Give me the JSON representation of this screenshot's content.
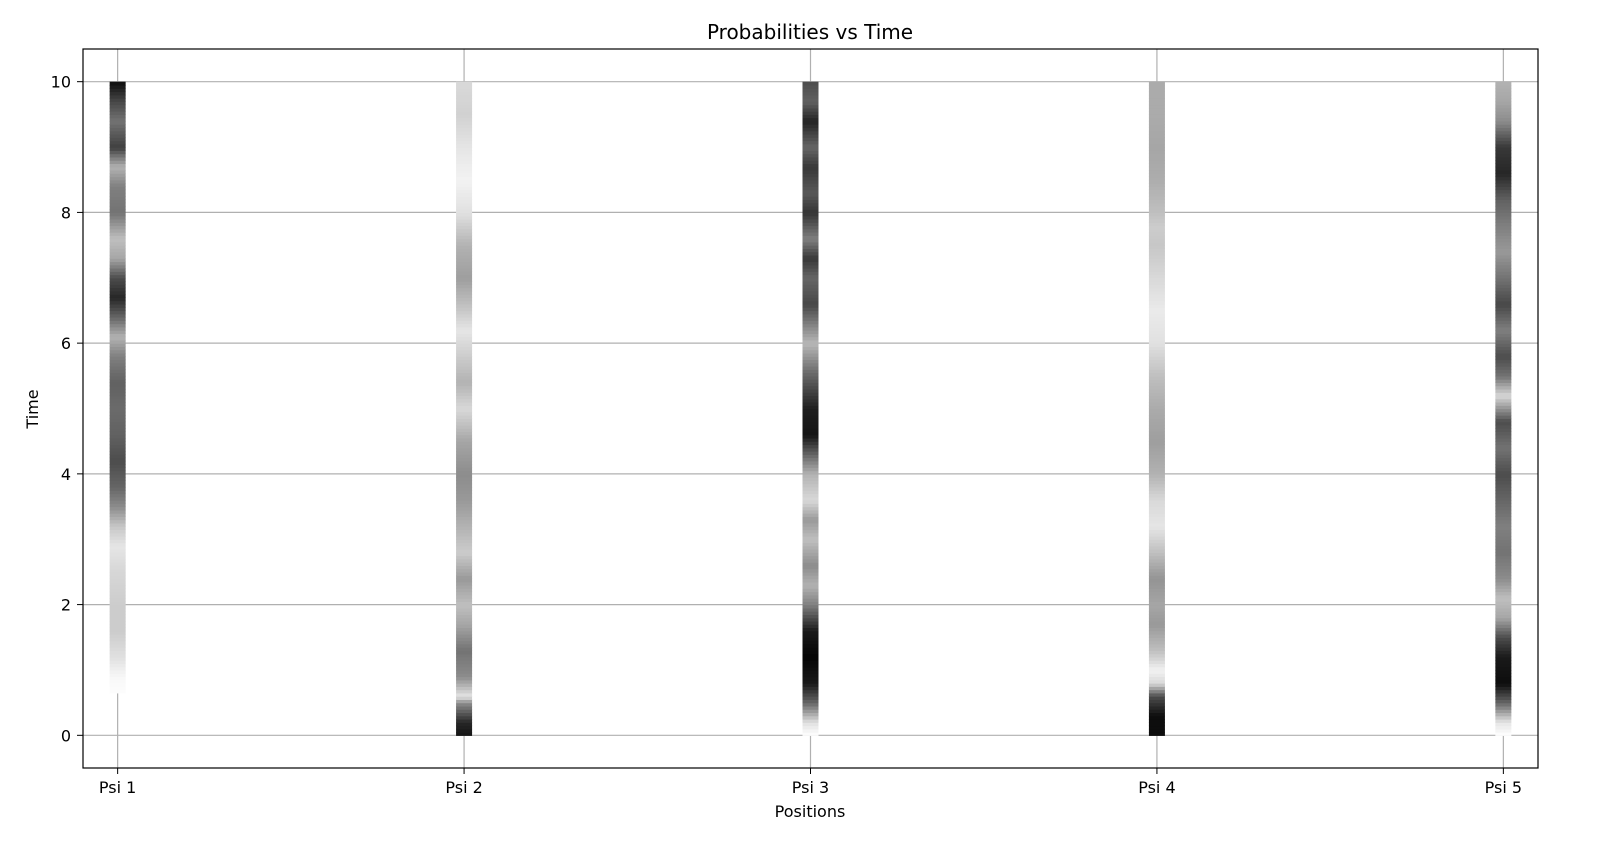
{
  "chart_data": {
    "type": "heatmap",
    "title": "Probabilities vs Time",
    "xlabel": "Positions",
    "ylabel": "Time",
    "categories": [
      "Psi 1",
      "Psi 2",
      "Psi 3",
      "Psi 4",
      "Psi 5"
    ],
    "y_ticks": [
      "0",
      "2",
      "4",
      "6",
      "8",
      "10"
    ],
    "ylim": [
      -0.5,
      10.5
    ],
    "time_range": [
      0,
      10
    ],
    "grid": true,
    "colormap": "gray_r",
    "colors": {
      "background": "#ffffff",
      "grid": "#b0b0b0",
      "axes": "#000000"
    },
    "series": [
      {
        "name": "Psi 1",
        "profile": [
          [
            0.0,
            0.0
          ],
          [
            0.5,
            0.0
          ],
          [
            0.9,
            0.03
          ],
          [
            1.2,
            0.12
          ],
          [
            1.6,
            0.2
          ],
          [
            2.0,
            0.2
          ],
          [
            2.5,
            0.16
          ],
          [
            2.9,
            0.1
          ],
          [
            3.2,
            0.22
          ],
          [
            3.5,
            0.45
          ],
          [
            3.8,
            0.6
          ],
          [
            4.2,
            0.7
          ],
          [
            4.6,
            0.62
          ],
          [
            5.0,
            0.58
          ],
          [
            5.4,
            0.62
          ],
          [
            5.8,
            0.5
          ],
          [
            6.1,
            0.3
          ],
          [
            6.4,
            0.6
          ],
          [
            6.7,
            0.85
          ],
          [
            7.0,
            0.7
          ],
          [
            7.3,
            0.35
          ],
          [
            7.6,
            0.25
          ],
          [
            8.0,
            0.55
          ],
          [
            8.4,
            0.5
          ],
          [
            8.7,
            0.3
          ],
          [
            9.0,
            0.75
          ],
          [
            9.4,
            0.55
          ],
          [
            9.7,
            0.72
          ],
          [
            10.0,
            0.95
          ]
        ]
      },
      {
        "name": "Psi 2",
        "profile": [
          [
            0.0,
            0.92
          ],
          [
            0.2,
            0.85
          ],
          [
            0.5,
            0.45
          ],
          [
            0.6,
            0.1
          ],
          [
            0.9,
            0.45
          ],
          [
            1.3,
            0.55
          ],
          [
            1.7,
            0.35
          ],
          [
            2.0,
            0.25
          ],
          [
            2.4,
            0.4
          ],
          [
            2.8,
            0.2
          ],
          [
            3.2,
            0.3
          ],
          [
            3.6,
            0.4
          ],
          [
            4.0,
            0.45
          ],
          [
            4.5,
            0.35
          ],
          [
            5.0,
            0.15
          ],
          [
            5.4,
            0.3
          ],
          [
            5.8,
            0.2
          ],
          [
            6.2,
            0.1
          ],
          [
            6.6,
            0.25
          ],
          [
            7.0,
            0.38
          ],
          [
            7.5,
            0.3
          ],
          [
            8.0,
            0.12
          ],
          [
            8.5,
            0.05
          ],
          [
            9.0,
            0.1
          ],
          [
            9.5,
            0.18
          ],
          [
            10.0,
            0.15
          ]
        ]
      },
      {
        "name": "Psi 3",
        "profile": [
          [
            0.0,
            0.0
          ],
          [
            0.2,
            0.12
          ],
          [
            0.5,
            0.6
          ],
          [
            0.8,
            0.9
          ],
          [
            1.2,
            0.98
          ],
          [
            1.6,
            0.9
          ],
          [
            2.0,
            0.5
          ],
          [
            2.3,
            0.3
          ],
          [
            2.6,
            0.45
          ],
          [
            3.0,
            0.25
          ],
          [
            3.3,
            0.4
          ],
          [
            3.6,
            0.15
          ],
          [
            4.0,
            0.3
          ],
          [
            4.3,
            0.6
          ],
          [
            4.6,
            0.92
          ],
          [
            5.0,
            0.88
          ],
          [
            5.3,
            0.72
          ],
          [
            5.6,
            0.55
          ],
          [
            6.0,
            0.28
          ],
          [
            6.3,
            0.5
          ],
          [
            6.6,
            0.72
          ],
          [
            7.0,
            0.6
          ],
          [
            7.3,
            0.78
          ],
          [
            7.6,
            0.5
          ],
          [
            8.0,
            0.8
          ],
          [
            8.3,
            0.65
          ],
          [
            8.7,
            0.78
          ],
          [
            9.0,
            0.6
          ],
          [
            9.4,
            0.86
          ],
          [
            9.7,
            0.62
          ],
          [
            10.0,
            0.7
          ]
        ]
      },
      {
        "name": "Psi 4",
        "profile": [
          [
            0.0,
            0.95
          ],
          [
            0.3,
            0.95
          ],
          [
            0.6,
            0.7
          ],
          [
            0.8,
            0.15
          ],
          [
            1.0,
            0.05
          ],
          [
            1.3,
            0.25
          ],
          [
            1.7,
            0.4
          ],
          [
            2.0,
            0.35
          ],
          [
            2.4,
            0.42
          ],
          [
            2.8,
            0.25
          ],
          [
            3.2,
            0.1
          ],
          [
            3.6,
            0.15
          ],
          [
            4.0,
            0.3
          ],
          [
            4.5,
            0.38
          ],
          [
            5.0,
            0.33
          ],
          [
            5.5,
            0.25
          ],
          [
            6.0,
            0.12
          ],
          [
            6.5,
            0.08
          ],
          [
            7.0,
            0.15
          ],
          [
            7.5,
            0.22
          ],
          [
            7.8,
            0.2
          ],
          [
            8.0,
            0.25
          ],
          [
            8.5,
            0.32
          ],
          [
            9.0,
            0.35
          ],
          [
            9.5,
            0.33
          ],
          [
            10.0,
            0.33
          ]
        ]
      },
      {
        "name": "Psi 5",
        "profile": [
          [
            0.0,
            0.0
          ],
          [
            0.2,
            0.1
          ],
          [
            0.5,
            0.6
          ],
          [
            0.8,
            0.95
          ],
          [
            1.2,
            0.9
          ],
          [
            1.5,
            0.7
          ],
          [
            1.8,
            0.35
          ],
          [
            2.1,
            0.25
          ],
          [
            2.4,
            0.45
          ],
          [
            2.8,
            0.55
          ],
          [
            3.2,
            0.5
          ],
          [
            3.6,
            0.6
          ],
          [
            4.0,
            0.7
          ],
          [
            4.4,
            0.55
          ],
          [
            4.8,
            0.7
          ],
          [
            5.2,
            0.15
          ],
          [
            5.5,
            0.55
          ],
          [
            5.8,
            0.7
          ],
          [
            6.2,
            0.5
          ],
          [
            6.6,
            0.72
          ],
          [
            7.0,
            0.55
          ],
          [
            7.4,
            0.4
          ],
          [
            7.8,
            0.5
          ],
          [
            8.2,
            0.62
          ],
          [
            8.6,
            0.85
          ],
          [
            9.0,
            0.78
          ],
          [
            9.4,
            0.45
          ],
          [
            9.7,
            0.35
          ],
          [
            10.0,
            0.3
          ]
        ]
      }
    ]
  }
}
